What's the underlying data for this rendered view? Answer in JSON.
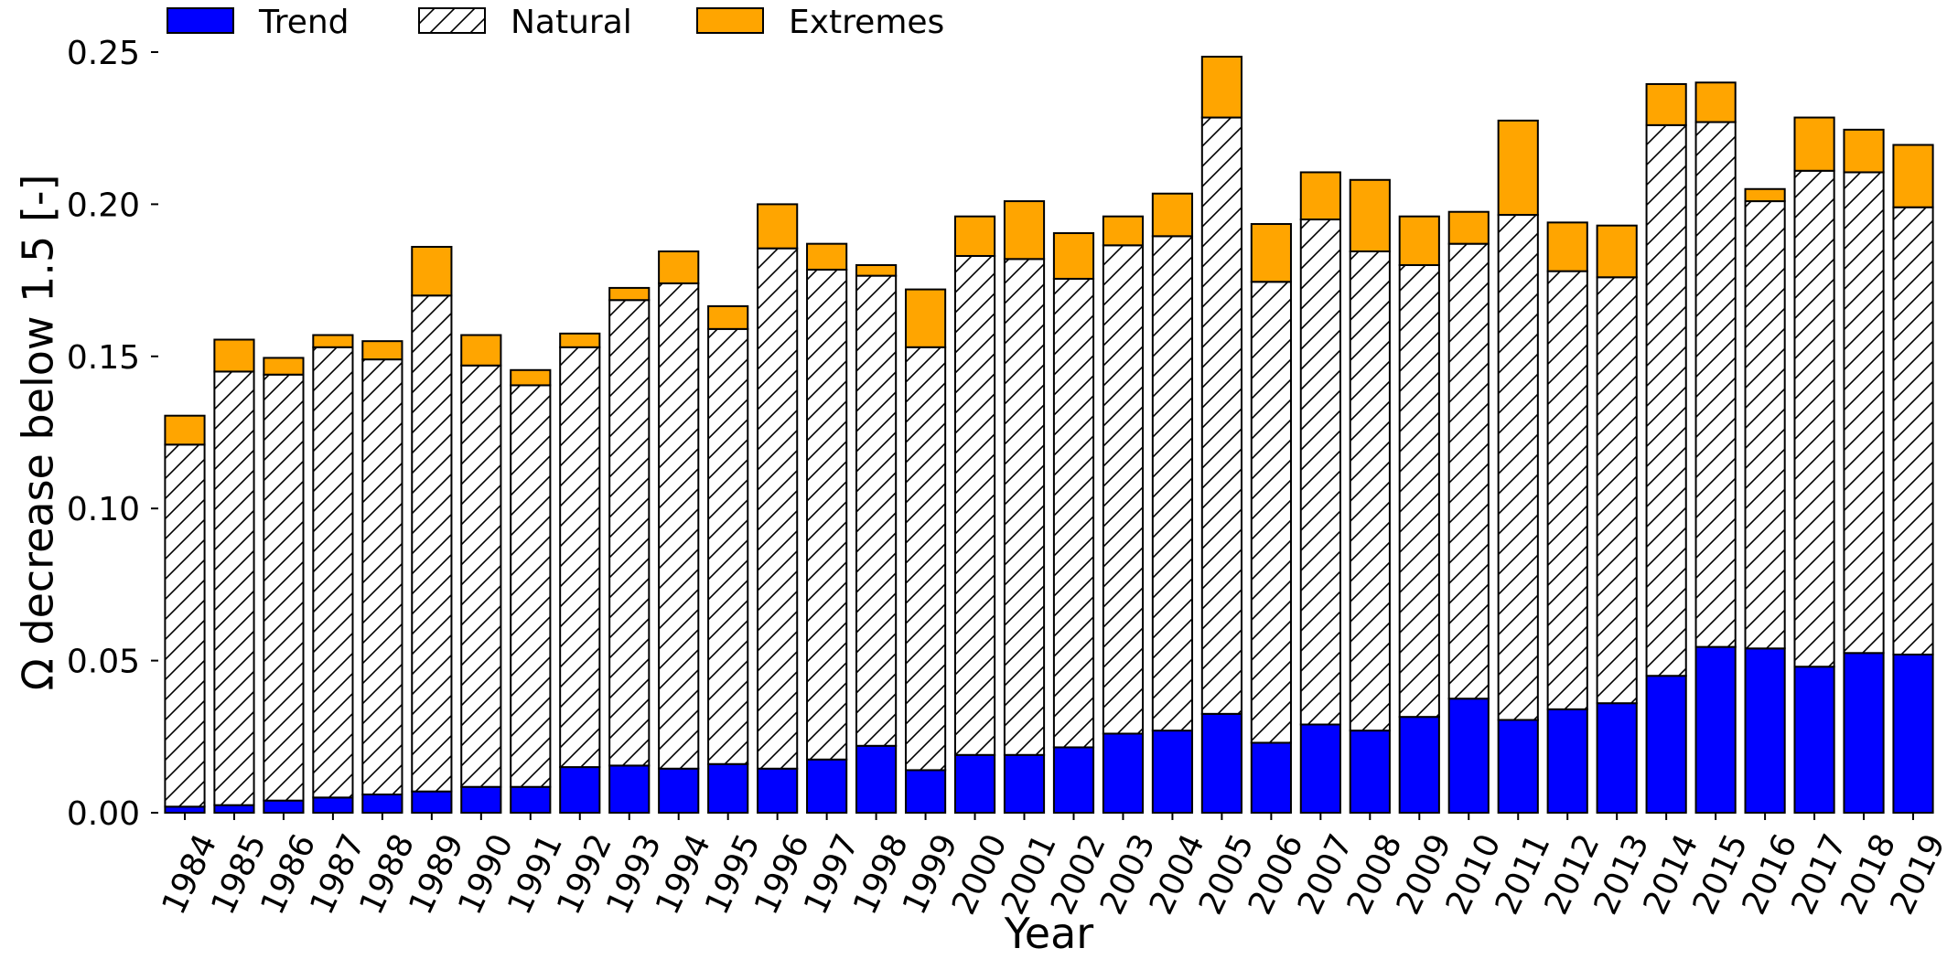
{
  "chart_data": {
    "type": "bar",
    "stacked": true,
    "title": "",
    "xlabel": "Year",
    "ylabel": "Ω decrease below 1.5 [-]",
    "ylim": [
      0,
      0.25
    ],
    "yticks": [
      "0.00",
      "0.05",
      "0.10",
      "0.15",
      "0.20",
      "0.25"
    ],
    "grid": false,
    "legend": {
      "position": "top-left",
      "orientation": "horizontal"
    },
    "categories": [
      "1984",
      "1985",
      "1986",
      "1987",
      "1988",
      "1989",
      "1990",
      "1991",
      "1992",
      "1993",
      "1994",
      "1995",
      "1996",
      "1997",
      "1998",
      "1999",
      "2000",
      "2001",
      "2002",
      "2003",
      "2004",
      "2005",
      "2006",
      "2007",
      "2008",
      "2009",
      "2010",
      "2011",
      "2012",
      "2013",
      "2014",
      "2015",
      "2016",
      "2017",
      "2018",
      "2019"
    ],
    "series": [
      {
        "name": "Trend",
        "color": "#0000ff",
        "pattern": "solid",
        "values": [
          0.002,
          0.0025,
          0.004,
          0.005,
          0.006,
          0.007,
          0.0085,
          0.0085,
          0.015,
          0.0155,
          0.0145,
          0.016,
          0.0145,
          0.0175,
          0.022,
          0.014,
          0.019,
          0.019,
          0.0215,
          0.026,
          0.027,
          0.0325,
          0.023,
          0.029,
          0.027,
          0.0315,
          0.0375,
          0.0305,
          0.034,
          0.036,
          0.045,
          0.0545,
          0.054,
          0.048,
          0.0525,
          0.052
        ]
      },
      {
        "name": "Natural",
        "color": "#ffffff",
        "pattern": "hatch",
        "values": [
          0.119,
          0.1425,
          0.14,
          0.148,
          0.143,
          0.163,
          0.1385,
          0.132,
          0.138,
          0.153,
          0.1595,
          0.143,
          0.171,
          0.161,
          0.1545,
          0.139,
          0.164,
          0.163,
          0.154,
          0.1605,
          0.1625,
          0.196,
          0.1515,
          0.166,
          0.1575,
          0.1485,
          0.1495,
          0.166,
          0.144,
          0.14,
          0.181,
          0.1725,
          0.147,
          0.163,
          0.158,
          0.147
        ]
      },
      {
        "name": "Extremes",
        "color": "#ffa500",
        "pattern": "solid",
        "values": [
          0.0095,
          0.0105,
          0.0055,
          0.004,
          0.006,
          0.016,
          0.01,
          0.005,
          0.0045,
          0.004,
          0.0105,
          0.0075,
          0.0145,
          0.0085,
          0.0035,
          0.019,
          0.013,
          0.019,
          0.015,
          0.0095,
          0.014,
          0.02,
          0.019,
          0.0155,
          0.0235,
          0.016,
          0.0105,
          0.031,
          0.016,
          0.017,
          0.0135,
          0.013,
          0.004,
          0.0175,
          0.014,
          0.0205
        ]
      }
    ]
  }
}
